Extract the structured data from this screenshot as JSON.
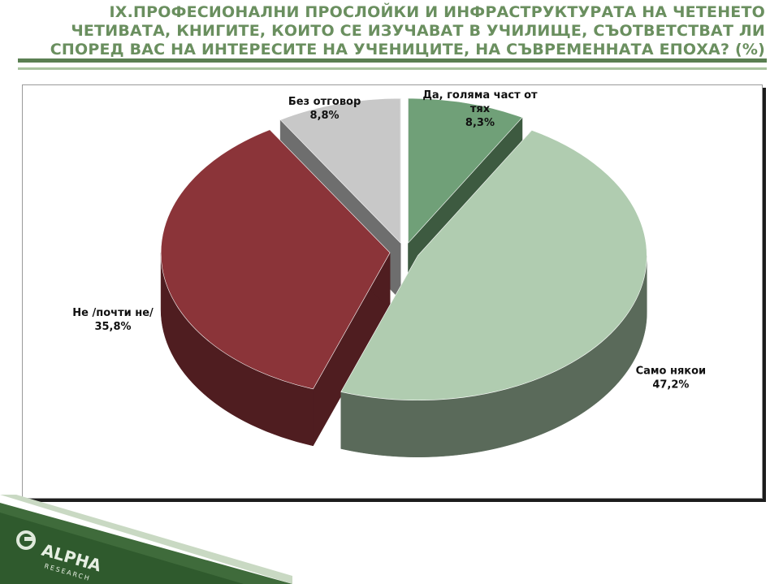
{
  "title": {
    "line1": "IX.ПРОФЕСИОНАЛНИ ПРОСЛОЙКИ И ИНФРАСТРУКТУРАТА НА ЧЕТЕНЕТО",
    "line2": "ЧЕТИВАТА, КНИГИТЕ, КОИТО СЕ ИЗУЧАВАТ В УЧИЛИЩЕ, СЪОТВЕТСТВАТ ЛИ",
    "line3": "СПОРЕД ВАС НА ИНТЕРЕСИТЕ НА УЧЕНИЦИТЕ, НА СЪВРЕМЕННАТА ЕПОХА? (%)"
  },
  "colors": {
    "title": "#6a8f5f",
    "accent_dark": "#5a7f52",
    "accent_light": "#a9c4a0"
  },
  "chart_data": {
    "type": "pie",
    "style": "3d-exploded",
    "slices": [
      {
        "label_line1": "Да, голяма част от",
        "label_line2": "тях",
        "value_label": "8,3%",
        "value": 8.3,
        "color": "#70a078",
        "side_color": "#3d5a40"
      },
      {
        "label_line1": "Само някои",
        "label_line2": "",
        "value_label": "47,2%",
        "value": 47.2,
        "color": "#b0ccb0",
        "side_color": "#5a6a5a"
      },
      {
        "label_line1": "Не /почти не/",
        "label_line2": "",
        "value_label": "35,8%",
        "value": 35.8,
        "color": "#8b3439",
        "side_color": "#4f1d20"
      },
      {
        "label_line1": "Без отговор",
        "label_line2": "",
        "value_label": "8,8%",
        "value": 8.8,
        "color": "#c8c8c8",
        "side_color": "#6e6e6e"
      }
    ]
  },
  "footer": {
    "logo_text": "ALPHA",
    "logo_subtext": "RESEARCH"
  }
}
